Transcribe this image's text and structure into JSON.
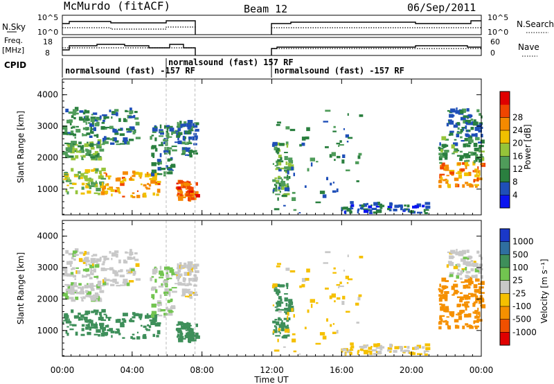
{
  "header": {
    "station": "McMurdo (fitACF)",
    "beam": "Beam 12",
    "date": "06/Sep/2011"
  },
  "top_panels": {
    "nsky_label": "N.Sky",
    "nsearch_label": "N.Search",
    "nsky_ticks": [
      "10^5",
      "10^0"
    ],
    "nsearch_ticks": [
      "10^5",
      "10^0"
    ],
    "freq_label": "Freq.",
    "freq_unit": "[MHz]",
    "freq_ticks": [
      "18",
      "8"
    ],
    "nave_label": "Nave",
    "nave_ticks": [
      "60",
      "0"
    ],
    "cpid_label": "CPID",
    "cpid_segments": [
      {
        "text": "normalsound (fast) -157 RF",
        "row": "low",
        "start_hour": 0
      },
      {
        "text": "normalsound (fast) 157 RF",
        "row": "high",
        "start_hour": 6
      },
      {
        "text": "normalsound (fast) -157 RF",
        "row": "low",
        "start_hour": 12
      }
    ]
  },
  "axes": {
    "ylabel": "Slant Range [km]",
    "yticks": [
      1000,
      2000,
      3000,
      4000
    ],
    "ylim": [
      180,
      4500
    ],
    "xlabel": "Time UT",
    "xticks": [
      "00:00",
      "04:00",
      "08:00",
      "12:00",
      "16:00",
      "20:00",
      "00:00"
    ],
    "xlim_hours": [
      0,
      24
    ],
    "data_gap_hours": [
      7.7,
      12.0
    ],
    "marker_lines_hours": [
      5.95,
      7.6
    ]
  },
  "power_colorbar": {
    "label": "Power [dB]",
    "ticks": [
      "4",
      "8",
      "12",
      "16",
      "20",
      "24",
      "28"
    ],
    "colors": [
      "#0a14f0",
      "#1f4fb8",
      "#2a7f3f",
      "#4f9c5a",
      "#95c43a",
      "#f0c000",
      "#f58a00",
      "#f04500",
      "#e00000"
    ]
  },
  "velocity_colorbar": {
    "label": "Velocity [m s⁻¹]",
    "ticks": [
      "1000",
      "500",
      "100",
      "25",
      "-25",
      "-100",
      "-500",
      "-1000"
    ],
    "colors": [
      "#1a38c8",
      "#2f6fa0",
      "#3e8f5a",
      "#72c450",
      "#c8c8c8",
      "#f5c000",
      "#f59000",
      "#f05000",
      "#e00000"
    ]
  },
  "chart_data": {
    "type": "heatmap",
    "panels": [
      "power",
      "velocity"
    ],
    "x_unit": "hours UT",
    "y_unit": "km",
    "scatter_regions": [
      {
        "t0": 0.0,
        "t1": 2.0,
        "r0": 2600,
        "r1": 3500,
        "power": 10,
        "velocity": 0
      },
      {
        "t0": 0.0,
        "t1": 2.2,
        "r0": 1900,
        "r1": 2500,
        "power": 13,
        "velocity": 10
      },
      {
        "t0": 0.0,
        "t1": 2.3,
        "r0": 800,
        "r1": 1600,
        "power": 16,
        "velocity": 200
      },
      {
        "t0": 2.0,
        "t1": 4.2,
        "r0": 2400,
        "r1": 3500,
        "power": 9,
        "velocity": 0
      },
      {
        "t0": 2.2,
        "t1": 5.5,
        "r0": 700,
        "r1": 1500,
        "power": 22,
        "velocity": 160
      },
      {
        "t0": 5.0,
        "t1": 6.3,
        "r0": 1400,
        "r1": 3000,
        "power": 9,
        "velocity": 30
      },
      {
        "t0": 6.4,
        "t1": 7.6,
        "r0": 2000,
        "r1": 3100,
        "power": 8,
        "velocity": -10
      },
      {
        "t0": 6.5,
        "t1": 7.7,
        "r0": 600,
        "r1": 1200,
        "power": 26,
        "velocity": 180
      },
      {
        "t0": 12.0,
        "t1": 13.0,
        "r0": 700,
        "r1": 2400,
        "power": 12,
        "velocity": 220
      },
      {
        "t0": 12.0,
        "t1": 17.0,
        "r0": 200,
        "r1": 3500,
        "power": 8,
        "velocity": -40
      },
      {
        "t0": 16.0,
        "t1": 21.0,
        "r0": 200,
        "r1": 500,
        "power": 6,
        "velocity": -30
      },
      {
        "t0": 21.5,
        "t1": 24.0,
        "r0": 1000,
        "r1": 1800,
        "power": 22,
        "velocity": -230
      },
      {
        "t0": 21.5,
        "t1": 24.0,
        "r0": 1800,
        "r1": 2600,
        "power": 11,
        "velocity": -160
      },
      {
        "t0": 22.0,
        "t1": 24.0,
        "r0": 2600,
        "r1": 3500,
        "power": 8,
        "velocity": 0
      }
    ]
  }
}
